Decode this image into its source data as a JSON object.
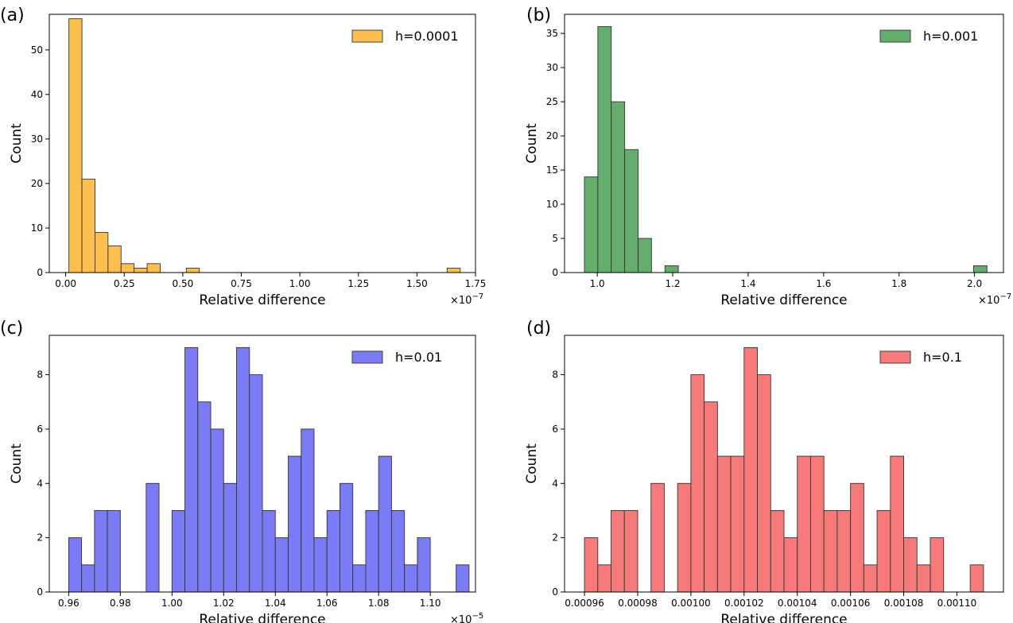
{
  "chart_data": [
    {
      "type": "bar",
      "panel_label": "(a)",
      "legend": "h=0.0001",
      "legend_position": "top-right",
      "color": "#fdbf4f",
      "xlabel": "Relative difference",
      "ylabel": "Count",
      "x_multiplier": "×10",
      "x_multiplier_exp": "−7",
      "xlim": [
        -0.07,
        1.75
      ],
      "ylim": [
        0,
        58
      ],
      "xticks": [
        0.0,
        0.25,
        0.5,
        0.75,
        1.0,
        1.25,
        1.5,
        1.75
      ],
      "xtick_labels": [
        "0.00",
        "0.25",
        "0.50",
        "0.75",
        "1.00",
        "1.25",
        "1.50",
        "1.75"
      ],
      "yticks": [
        0,
        10,
        20,
        30,
        40,
        50
      ],
      "ytick_labels": [
        "0",
        "10",
        "20",
        "30",
        "40",
        "50"
      ],
      "bin_start": 0.0137,
      "bin_width": 0.0557,
      "counts": [
        57,
        21,
        9,
        6,
        2,
        1,
        2,
        0,
        0,
        1,
        0,
        0,
        0,
        0,
        0,
        0,
        0,
        0,
        0,
        0,
        0,
        0,
        0,
        0,
        0,
        0,
        0,
        0,
        0,
        1
      ]
    },
    {
      "type": "bar",
      "panel_label": "(b)",
      "legend": "h=0.001",
      "legend_position": "top-right",
      "color": "#64ad6c",
      "xlabel": "Relative difference",
      "ylabel": "Count",
      "x_multiplier": "×10",
      "x_multiplier_exp": "−7",
      "xlim": [
        0.9133,
        2.0767
      ],
      "ylim": [
        0,
        37.8
      ],
      "xticks": [
        1.0,
        1.2,
        1.4,
        1.6,
        1.8,
        2.0
      ],
      "xtick_labels": [
        "1.0",
        "1.2",
        "1.4",
        "1.6",
        "1.8",
        "2.0"
      ],
      "yticks": [
        0,
        5,
        10,
        15,
        20,
        25,
        30,
        35
      ],
      "ytick_labels": [
        "0",
        "5",
        "10",
        "15",
        "20",
        "25",
        "30",
        "35"
      ],
      "bin_start": 0.966,
      "bin_width": 0.03557,
      "counts": [
        14,
        36,
        25,
        18,
        5,
        0,
        1,
        0,
        0,
        0,
        0,
        0,
        0,
        0,
        0,
        0,
        0,
        0,
        0,
        0,
        0,
        0,
        0,
        0,
        0,
        0,
        0,
        0,
        0,
        1
      ]
    },
    {
      "type": "bar",
      "panel_label": "(c)",
      "legend": "h=0.01",
      "legend_position": "top-right",
      "color": "#7b7bf6",
      "xlabel": "Relative difference",
      "ylabel": "Count",
      "x_multiplier": "×10",
      "x_multiplier_exp": "−5",
      "xlim": [
        0.9525,
        1.1175
      ],
      "ylim": [
        0,
        9.45
      ],
      "xticks": [
        0.96,
        0.98,
        1.0,
        1.02,
        1.04,
        1.06,
        1.08,
        1.1
      ],
      "xtick_labels": [
        "0.96",
        "0.98",
        "1.00",
        "1.02",
        "1.04",
        "1.06",
        "1.08",
        "1.10"
      ],
      "yticks": [
        0,
        2,
        4,
        6,
        8
      ],
      "ytick_labels": [
        "0",
        "2",
        "4",
        "6",
        "8"
      ],
      "bin_start": 0.96,
      "bin_width": 0.005,
      "counts": [
        2,
        1,
        3,
        3,
        0,
        0,
        4,
        0,
        3,
        9,
        7,
        6,
        4,
        9,
        8,
        3,
        2,
        5,
        6,
        2,
        3,
        4,
        1,
        3,
        5,
        3,
        1,
        2,
        0,
        0,
        1
      ]
    },
    {
      "type": "bar",
      "panel_label": "(d)",
      "legend": "h=0.1",
      "legend_position": "top-right",
      "color": "#f77a7a",
      "xlabel": "Relative difference",
      "ylabel": "Count",
      "x_multiplier": "",
      "x_multiplier_exp": "",
      "xlim": [
        0.0009525,
        0.0011175
      ],
      "ylim": [
        0,
        9.45
      ],
      "xticks": [
        0.00096,
        0.00098,
        0.001,
        0.00102,
        0.00104,
        0.00106,
        0.00108,
        0.0011
      ],
      "xtick_labels": [
        "0.00096",
        "0.00098",
        "0.00100",
        "0.00102",
        "0.00104",
        "0.00106",
        "0.00108",
        "0.00110"
      ],
      "yticks": [
        0,
        2,
        4,
        6,
        8
      ],
      "ytick_labels": [
        "0",
        "2",
        "4",
        "6",
        "8"
      ],
      "bin_start": 0.00096,
      "bin_width": 5e-06,
      "counts": [
        2,
        1,
        3,
        3,
        0,
        4,
        0,
        4,
        8,
        7,
        5,
        5,
        9,
        8,
        3,
        2,
        5,
        5,
        3,
        3,
        4,
        1,
        3,
        5,
        2,
        1,
        2,
        0,
        0,
        1
      ]
    }
  ]
}
